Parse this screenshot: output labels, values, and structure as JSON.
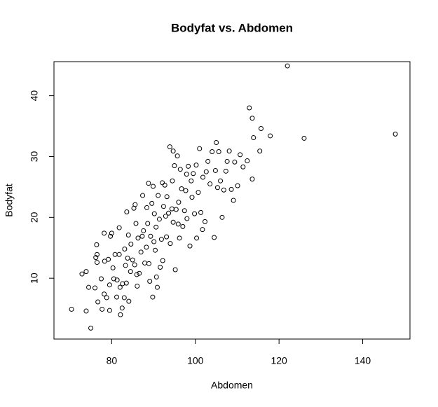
{
  "chart_data": {
    "type": "scatter",
    "title": "Bodyfat vs. Abdomen",
    "x_label": "Abdomen",
    "y_label": "Bodyfat",
    "color": "#000000",
    "xlim": [
      66.2,
      151.3
    ],
    "ylim": [
      0,
      45.6
    ],
    "xticks": [
      80,
      100,
      120,
      140
    ],
    "yticks": [
      10,
      20,
      30,
      40
    ],
    "x": [
      70.4,
      73.9,
      75.0,
      72.9,
      73.9,
      74.5,
      76.0,
      76.5,
      76.2,
      76.4,
      76.5,
      76.7,
      77.5,
      77.7,
      78.2,
      78.2,
      78.3,
      78.8,
      79.2,
      79.5,
      79.5,
      79.7,
      80.0,
      80.3,
      80.5,
      80.8,
      81.2,
      81.3,
      81.8,
      81.8,
      82.0,
      82.1,
      82.5,
      82.6,
      83.0,
      83.1,
      83.3,
      83.5,
      83.6,
      83.8,
      84.0,
      84.1,
      84.5,
      84.6,
      85.0,
      85.3,
      85.5,
      85.6,
      85.8,
      86.0,
      86.1,
      86.3,
      86.6,
      87.0,
      87.3,
      87.4,
      87.6,
      87.9,
      88.3,
      88.4,
      88.6,
      88.8,
      88.9,
      89.1,
      89.3,
      89.6,
      89.8,
      89.9,
      90.1,
      90.2,
      90.4,
      90.6,
      90.7,
      90.9,
      91.1,
      91.4,
      91.6,
      91.9,
      92.1,
      92.2,
      92.4,
      92.7,
      92.9,
      93.1,
      93.2,
      93.6,
      93.9,
      94.0,
      94.4,
      94.5,
      94.7,
      95.0,
      95.2,
      95.4,
      95.7,
      95.9,
      96.2,
      96.4,
      96.7,
      97.0,
      97.4,
      97.7,
      98.0,
      98.3,
      98.7,
      99.0,
      99.2,
      99.5,
      99.8,
      100.2,
      100.3,
      100.7,
      101.0,
      101.3,
      101.7,
      101.8,
      102.3,
      102.6,
      103.0,
      103.5,
      104.0,
      104.5,
      104.8,
      105.0,
      105.3,
      105.6,
      106.0,
      106.4,
      106.8,
      107.3,
      107.6,
      108.1,
      108.6,
      109.1,
      109.4,
      110.1,
      110.7,
      111.4,
      112.4,
      112.9,
      113.6,
      113.6,
      113.9,
      115.4,
      115.7,
      117.9,
      122.0,
      126.0,
      147.8,
      96.0,
      97.9,
      94.7
    ],
    "values": [
      4.9,
      4.6,
      1.8,
      10.7,
      11.1,
      8.5,
      8.4,
      13.9,
      13.4,
      15.5,
      12.6,
      6.1,
      9.9,
      4.9,
      7.4,
      17.4,
      12.8,
      6.8,
      13.1,
      8.9,
      4.7,
      16.9,
      17.4,
      11.7,
      9.9,
      13.9,
      6.9,
      9.7,
      18.3,
      13.9,
      8.5,
      4.0,
      5.1,
      9.1,
      6.8,
      14.8,
      12.1,
      9.2,
      20.9,
      13.3,
      17.1,
      6.2,
      11.1,
      15.6,
      13.0,
      21.5,
      12.2,
      22.1,
      19.0,
      10.6,
      8.7,
      16.6,
      10.8,
      14.3,
      16.9,
      23.6,
      17.8,
      12.5,
      15.1,
      21.6,
      19.0,
      25.6,
      12.4,
      9.5,
      16.9,
      22.3,
      6.9,
      25.1,
      16.0,
      20.6,
      14.6,
      18.4,
      10.2,
      8.5,
      23.6,
      19.7,
      11.8,
      16.4,
      25.7,
      12.9,
      21.8,
      25.3,
      20.2,
      16.8,
      23.4,
      20.7,
      31.6,
      15.7,
      21.4,
      26.0,
      19.2,
      28.5,
      11.4,
      21.3,
      30.1,
      18.9,
      16.6,
      27.9,
      24.7,
      18.5,
      21.1,
      24.4,
      19.8,
      28.4,
      15.3,
      26.0,
      23.3,
      27.2,
      20.6,
      28.6,
      16.6,
      24.1,
      31.3,
      20.8,
      18.0,
      26.6,
      19.3,
      27.5,
      29.2,
      25.5,
      30.8,
      16.7,
      27.7,
      32.3,
      24.9,
      30.8,
      26.0,
      20.0,
      24.5,
      27.6,
      29.2,
      30.9,
      24.6,
      22.8,
      29.1,
      25.2,
      30.3,
      28.3,
      29.3,
      38.0,
      36.3,
      26.3,
      33.1,
      30.9,
      34.6,
      33.4,
      44.9,
      33.0,
      33.7,
      22.5,
      27.1,
      30.9
    ]
  }
}
